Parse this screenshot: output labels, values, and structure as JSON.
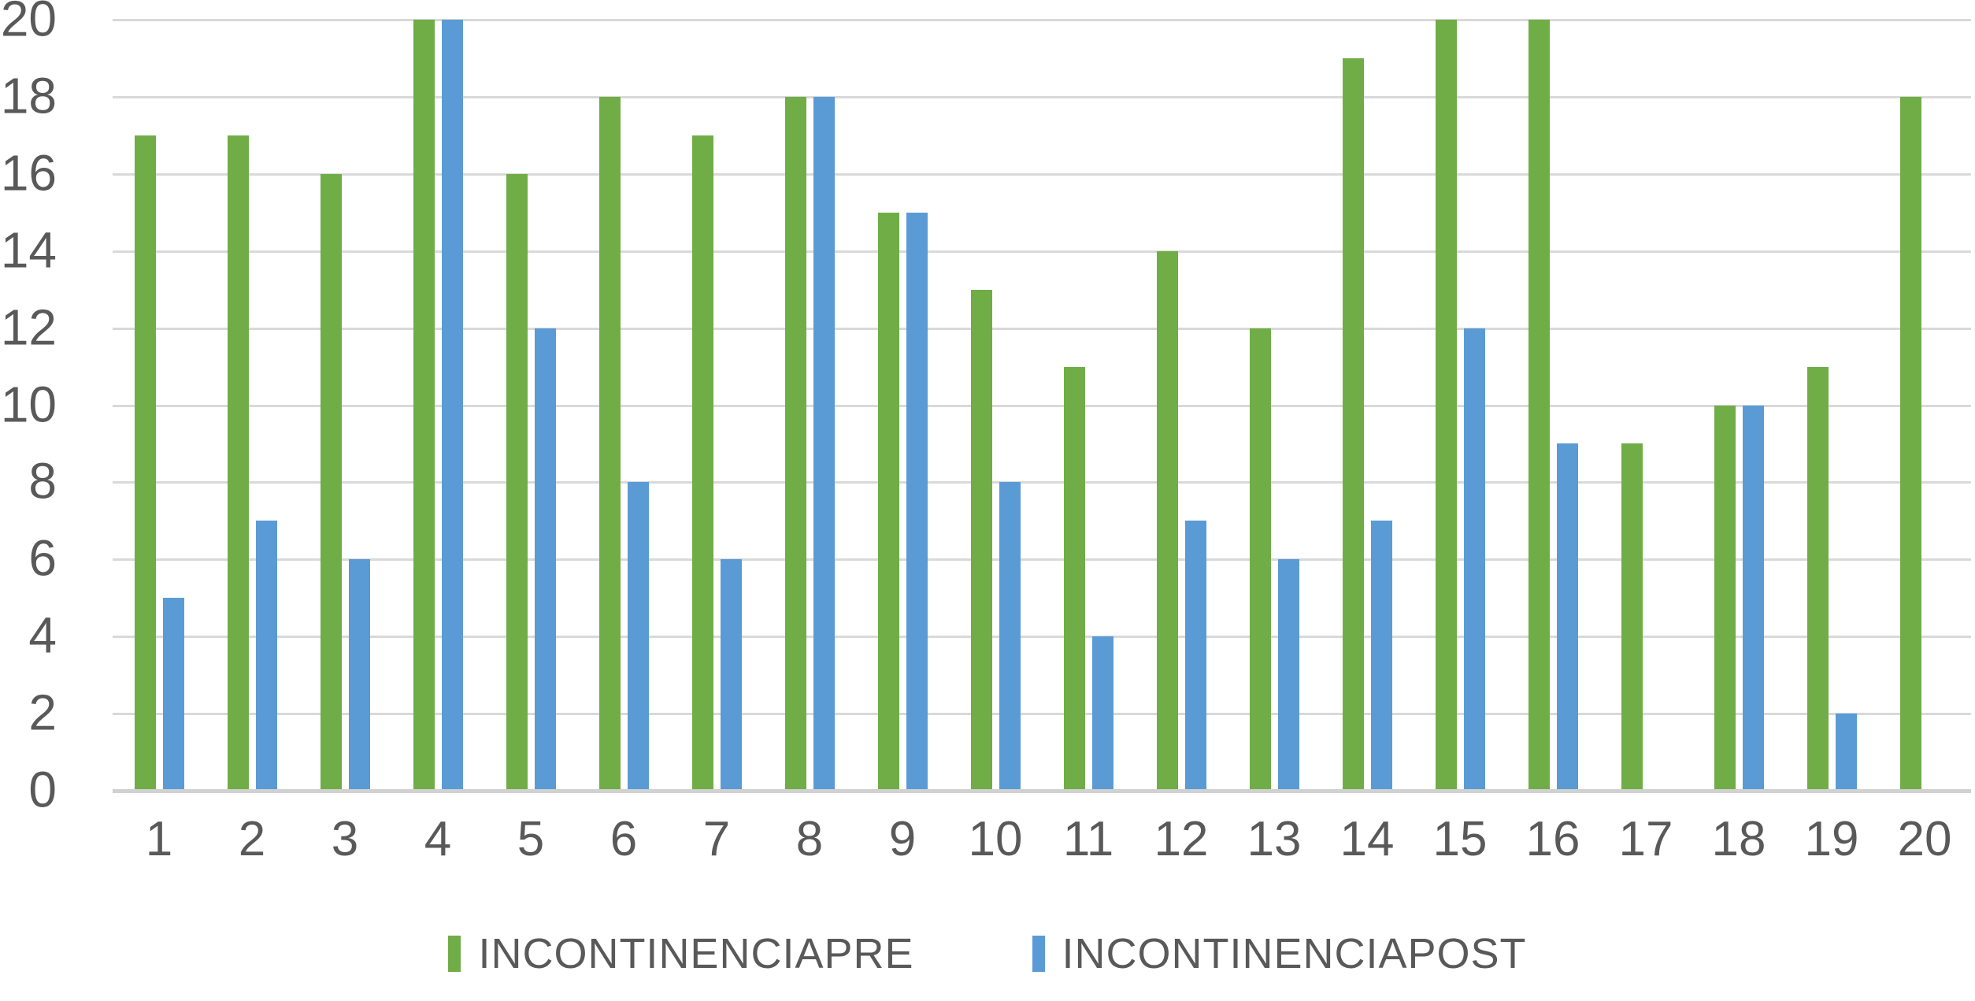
{
  "chart_data": {
    "type": "bar",
    "title": "",
    "categories": [
      "1",
      "2",
      "3",
      "4",
      "5",
      "6",
      "7",
      "8",
      "9",
      "10",
      "11",
      "12",
      "13",
      "14",
      "15",
      "16",
      "17",
      "18",
      "19",
      "20"
    ],
    "series": [
      {
        "name": "INCONTINENCIAPRE",
        "color": "#70AD47",
        "values": [
          17,
          17,
          16,
          20,
          16,
          18,
          17,
          18,
          15,
          13,
          11,
          14,
          12,
          19,
          20,
          20,
          9,
          10,
          11,
          18
        ]
      },
      {
        "name": "INCONTINENCIAPOST",
        "color": "#5B9BD5",
        "values": [
          5,
          7,
          6,
          20,
          12,
          8,
          6,
          18,
          15,
          8,
          4,
          7,
          6,
          7,
          12,
          9,
          0,
          10,
          2,
          0
        ]
      }
    ],
    "xlabel": "",
    "ylabel": "",
    "ylim": [
      0,
      20
    ],
    "yticks": [
      0,
      2,
      4,
      6,
      8,
      10,
      12,
      14,
      16,
      18,
      20
    ],
    "grid": "horizontal",
    "legend_position": "bottom"
  },
  "colors": {
    "background": "#ffffff",
    "gridline": "#d9d9d9",
    "axis_line": "#d1d1d1",
    "tick_label": "#595959",
    "series_pre": "#70AD47",
    "series_post": "#5B9BD5"
  }
}
